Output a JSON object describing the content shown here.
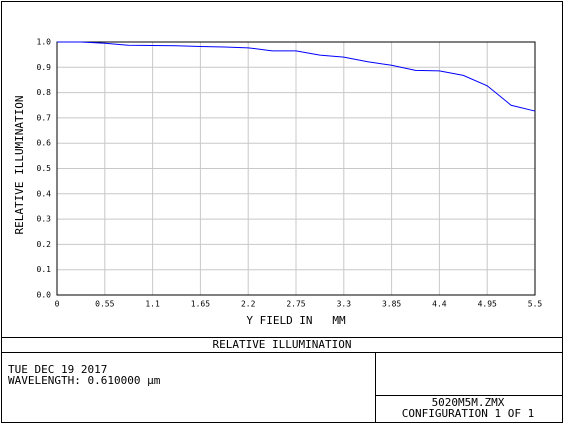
{
  "chart_data": {
    "type": "line",
    "title": "RELATIVE ILLUMINATION",
    "x_label": "Y FIELD IN   MM",
    "y_label": "RELATIVE ILLUMINATION",
    "x": [
      0,
      0.275,
      0.55,
      0.825,
      1.1,
      1.375,
      1.65,
      1.925,
      2.2,
      2.475,
      2.75,
      3.025,
      3.3,
      3.575,
      3.85,
      4.125,
      4.4,
      4.675,
      4.95,
      5.225,
      5.5
    ],
    "values": [
      1.0,
      1.0,
      0.995,
      0.987,
      0.986,
      0.985,
      0.982,
      0.98,
      0.977,
      0.965,
      0.965,
      0.948,
      0.94,
      0.922,
      0.908,
      0.888,
      0.886,
      0.868,
      0.827,
      0.75,
      0.727
    ],
    "color": "#0000ff",
    "xlim": [
      0,
      5.5
    ],
    "xticks": [
      0,
      0.55,
      1.1,
      1.65,
      2.2,
      2.75,
      3.3,
      3.85,
      4.4,
      4.95,
      5.5
    ],
    "ylim": [
      0,
      1.0
    ],
    "yticks": [
      {
        "value": 0,
        "label": "0.0"
      },
      0.1,
      0.2,
      0.3,
      0.4,
      0.5,
      0.6,
      0.7,
      0.8,
      0.9,
      {
        "value": 1.0,
        "label": "1.0"
      }
    ],
    "grid": true
  },
  "footer": {
    "date": "TUE DEC 19 2017",
    "wavelength": "WAVELENGTH: 0.610000 µm",
    "file": "5020M5M.ZMX",
    "configuration": "CONFIGURATION 1 OF 1"
  }
}
